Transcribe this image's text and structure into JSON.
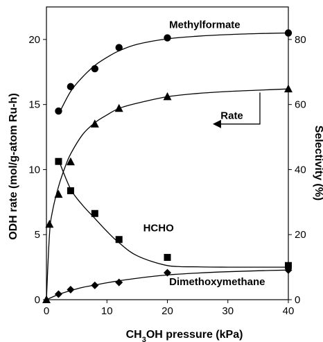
{
  "chart_data": {
    "type": "scatter",
    "xlabel": "CH3OH pressure (kPa)",
    "xlabel_parts": [
      "CH",
      "3",
      "OH pressure (kPa)"
    ],
    "ylabel_left": "ODH rate (mol/g-atom Ru-h)",
    "ylabel_right": "Selectivity (%)",
    "xlim": [
      0,
      40
    ],
    "x_ticks": [
      0,
      10,
      20,
      30,
      40
    ],
    "ylim_left": [
      0,
      22.5
    ],
    "y_ticks_left": [
      0,
      5,
      10,
      15,
      20
    ],
    "ylim_right": [
      0,
      90
    ],
    "y_ticks_right": [
      0,
      20,
      40,
      60,
      80
    ],
    "grid": false,
    "series": [
      {
        "name": "Rate",
        "axis": "left",
        "marker": "triangle",
        "x": [
          0,
          0.5,
          2,
          4,
          8,
          12,
          20,
          40
        ],
        "y": [
          0,
          5.8,
          8.1,
          10.6,
          13.5,
          14.7,
          15.6,
          16.2
        ],
        "fit_x": [
          0,
          0.5,
          1,
          2,
          3,
          4,
          6,
          8,
          10,
          12,
          15,
          20,
          25,
          30,
          35,
          40
        ],
        "fit_y": [
          0,
          5.0,
          6.8,
          8.7,
          10.1,
          11.2,
          12.7,
          13.6,
          14.2,
          14.7,
          15.1,
          15.6,
          15.85,
          16.0,
          16.1,
          16.2
        ]
      },
      {
        "name": "Methylformate",
        "axis": "right",
        "marker": "circle",
        "x": [
          2,
          4,
          8,
          12,
          20,
          40
        ],
        "y": [
          58,
          65.5,
          71,
          77.5,
          80.5,
          82
        ],
        "fit_x": [
          2,
          4,
          6,
          8,
          10,
          12,
          15,
          20,
          25,
          30,
          35,
          40
        ],
        "fit_y": [
          57,
          64,
          68.5,
          72,
          74.5,
          76.5,
          78.5,
          80.2,
          81.0,
          81.5,
          81.8,
          82
        ]
      },
      {
        "name": "HCHO",
        "axis": "right",
        "marker": "square",
        "x": [
          2,
          4,
          8,
          12,
          20,
          40
        ],
        "y": [
          42.5,
          33.5,
          26.5,
          18.5,
          13,
          10.5
        ],
        "fit_x": [
          2,
          4,
          6,
          8,
          10,
          12,
          15,
          20,
          25,
          30,
          35,
          40
        ],
        "fit_y": [
          43,
          34,
          29,
          25,
          21,
          17.5,
          13.5,
          10.5,
          10.1,
          10.0,
          10.0,
          10.0
        ]
      },
      {
        "name": "Dimethoxymethane",
        "axis": "right",
        "marker": "diamond",
        "x": [
          2,
          4,
          8,
          12,
          20,
          40
        ],
        "y": [
          1.7,
          3.1,
          4.4,
          5.3,
          8.3,
          9.1
        ],
        "fit_x": [
          0,
          2,
          4,
          6,
          8,
          10,
          12,
          15,
          20,
          25,
          30,
          35,
          40
        ],
        "fit_y": [
          0,
          1.6,
          2.8,
          3.8,
          4.5,
          5.2,
          5.8,
          6.6,
          7.6,
          8.2,
          8.6,
          8.9,
          9.1
        ]
      }
    ],
    "annotations": [
      {
        "text": "Methylformate",
        "axis": "right",
        "x": 20.3,
        "y": 83.5
      },
      {
        "text": "Rate",
        "axis": "left",
        "x": 28.8,
        "y": 13.9
      },
      {
        "text": "HCHO",
        "axis": "right",
        "x": 16,
        "y": 21
      },
      {
        "text": "Dimethoxymethane",
        "axis": "right",
        "x": 20.3,
        "y": 4.5
      }
    ],
    "rate_arrow": {
      "axis": "left",
      "x_from": 35.3,
      "x_to": 27.5,
      "y_top": 15.6,
      "y": 15.6,
      "y_bend": 13.5
    }
  }
}
